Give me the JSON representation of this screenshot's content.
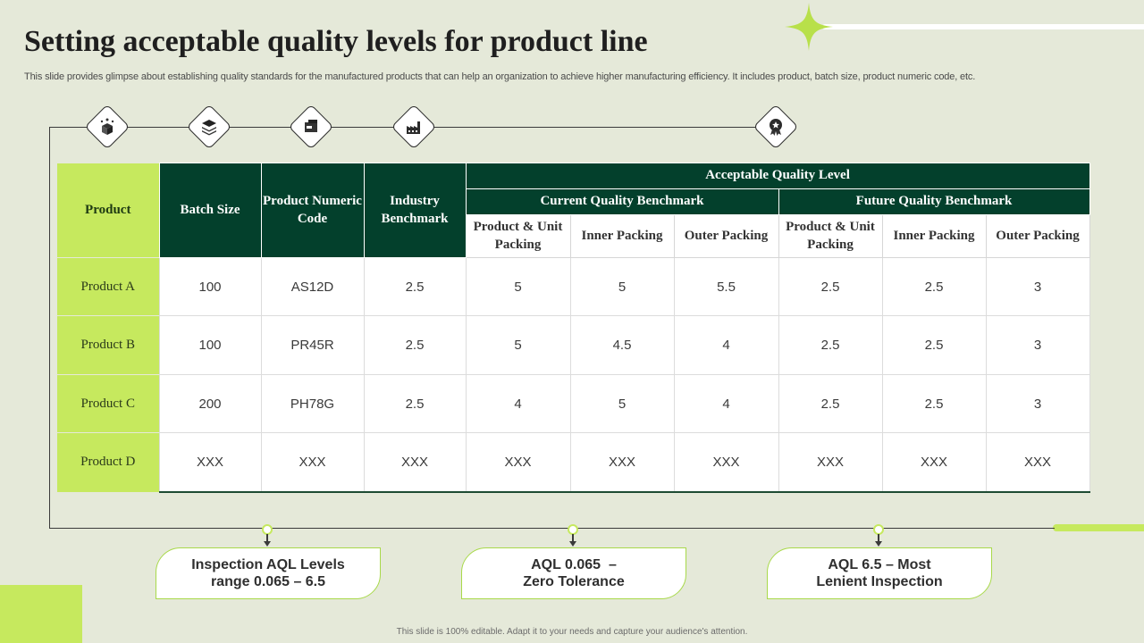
{
  "title": "Setting acceptable quality levels for product line",
  "subtitle": "This slide provides glimpse about establishing quality standards for the manufactured products that can help an organization to achieve higher manufacturing efficiency. It includes product, batch size, product numeric code, etc.",
  "icons": [
    "box-star-icon",
    "layers-icon",
    "shipping-box-icon",
    "factory-icon",
    "award-badge-icon"
  ],
  "table": {
    "headers": {
      "product": "Product",
      "batch_size": "Batch Size",
      "numeric_code": "Product Numeric Code",
      "industry_benchmark": "Industry Benchmark",
      "aql": "Acceptable Quality Level",
      "current": "Current Quality Benchmark",
      "future": "Future Quality Benchmark",
      "sub": [
        "Product & Unit Packing",
        "Inner Packing",
        "Outer Packing",
        "Product & Unit Packing",
        "Inner Packing",
        "Outer Packing"
      ]
    },
    "rows": [
      {
        "product": "Product A",
        "values": [
          "100",
          "AS12D",
          "2.5",
          "5",
          "5",
          "5.5",
          "2.5",
          "2.5",
          "3"
        ]
      },
      {
        "product": "Product B",
        "values": [
          "100",
          "PR45R",
          "2.5",
          "5",
          "4.5",
          "4",
          "2.5",
          "2.5",
          "3"
        ]
      },
      {
        "product": "Product C",
        "values": [
          "200",
          "PH78G",
          "2.5",
          "4",
          "5",
          "4",
          "2.5",
          "2.5",
          "3"
        ]
      },
      {
        "product": "Product D",
        "values": [
          "XXX",
          "XXX",
          "XXX",
          "XXX",
          "XXX",
          "XXX",
          "XXX",
          "XXX",
          "XXX"
        ]
      }
    ]
  },
  "callouts": [
    {
      "line1": "Inspection AQL Levels",
      "line2": "range 0.065 – 6.5"
    },
    {
      "line1": "AQL 0.065  –",
      "line2": "Zero Tolerance"
    },
    {
      "line1": "AQL 6.5 – Most",
      "line2": "Lenient Inspection"
    }
  ],
  "footer": "This slide is 100% editable. Adapt it to your needs and capture your audience's attention.",
  "colors": {
    "dark_green": "#03402c",
    "lime": "#c6e95e",
    "background": "#e5e9d9"
  }
}
